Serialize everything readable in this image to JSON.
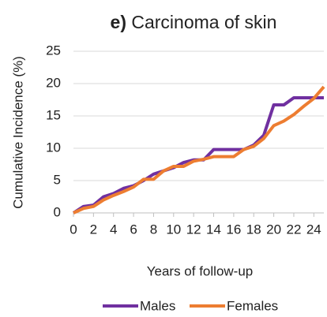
{
  "chart_data": {
    "type": "line",
    "panel_label": "e)",
    "title": "Carcinoma of skin",
    "x_label": "Years of follow-up",
    "y_label": "Cumulative Incidence (%)",
    "x": [
      0,
      1,
      2,
      3,
      4,
      5,
      6,
      7,
      8,
      9,
      10,
      11,
      12,
      13,
      14,
      15,
      16,
      17,
      18,
      19,
      20,
      21,
      22,
      23,
      24,
      25
    ],
    "xlim": [
      0,
      25
    ],
    "xticks": [
      0,
      2,
      4,
      6,
      8,
      10,
      12,
      14,
      16,
      18,
      20,
      22,
      24
    ],
    "ylim": [
      0,
      25
    ],
    "yticks": [
      0,
      5,
      10,
      15,
      20,
      25
    ],
    "grid": true,
    "series": [
      {
        "name": "Males",
        "color": "#7030a0",
        "values": [
          0,
          1,
          1.2,
          2.5,
          3,
          3.8,
          4.2,
          5,
          6,
          6.5,
          7,
          7.8,
          8.2,
          8.2,
          9.8,
          9.8,
          9.8,
          9.8,
          10.5,
          12,
          16.7,
          16.7,
          17.8,
          17.8,
          17.8,
          17.8
        ]
      },
      {
        "name": "Females",
        "color": "#ed7d31",
        "values": [
          0,
          0.7,
          1,
          2,
          2.7,
          3.3,
          4,
          5.2,
          5.2,
          6.5,
          7.2,
          7.2,
          8,
          8.3,
          8.7,
          8.7,
          8.7,
          9.8,
          10.3,
          11.5,
          13.5,
          14.2,
          15.2,
          16.5,
          17.7,
          19.5
        ]
      }
    ]
  }
}
